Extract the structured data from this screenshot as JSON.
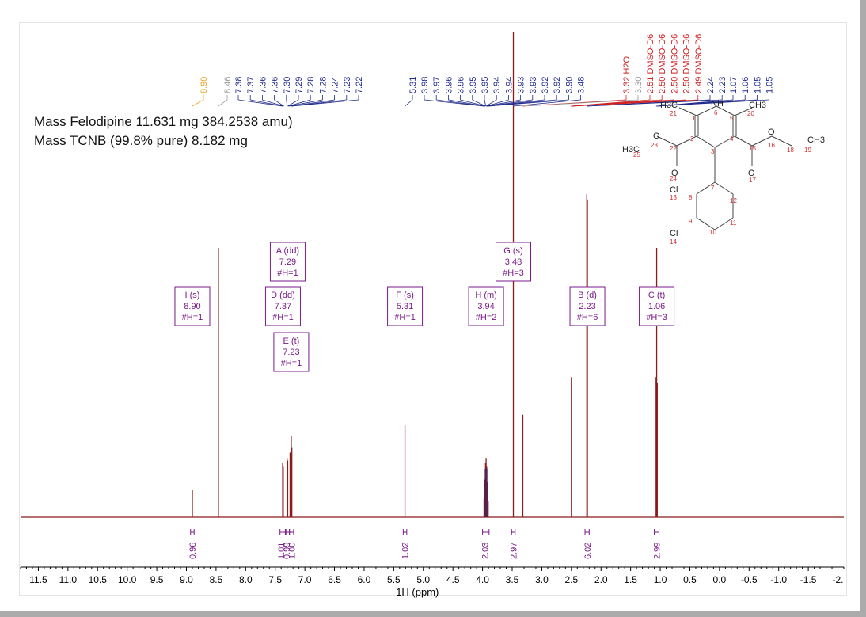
{
  "annotations": {
    "mass_line_1": "Mass Felodipine 11.631 mg 384.2538 amu)",
    "mass_line_2": "Mass TCNB (99.8% pure) 8.182 mg"
  },
  "colors": {
    "spectrum": "#8b1a1a",
    "spectrum_fill": "#1f2a8a",
    "peak_label_default": "#1f2a8a",
    "peak_label_solvent": "#d02020",
    "peak_label_orange": "#e8a020",
    "peak_label_gray": "#999999",
    "multiplet": "#7a1a8a"
  },
  "chart_data": {
    "type": "line",
    "xlabel": "1H (ppm)",
    "xlim": [
      11.8,
      -2.1
    ],
    "x_reversed": true,
    "x_ticks": [
      "11.5",
      "11.0",
      "10.5",
      "10.0",
      "9.5",
      "9.0",
      "8.5",
      "8.0",
      "7.5",
      "7.0",
      "6.5",
      "6.0",
      "5.5",
      "5.0",
      "4.5",
      "4.0",
      "3.5",
      "3.0",
      "2.5",
      "2.0",
      "1.5",
      "1.0",
      "0.5",
      "0.0",
      "-0.5",
      "-1.0",
      "-1.5",
      "-2."
    ],
    "x_tick_values": [
      11.5,
      11.0,
      10.5,
      10.0,
      9.5,
      9.0,
      8.5,
      8.0,
      7.5,
      7.0,
      6.5,
      6.0,
      5.5,
      5.0,
      4.5,
      4.0,
      3.5,
      3.0,
      2.5,
      2.0,
      1.5,
      1.0,
      0.5,
      0.0,
      -0.5,
      -1.0,
      -1.5,
      -2.0
    ],
    "peaks": [
      {
        "ppm": 8.9,
        "height": 0.1
      },
      {
        "ppm": 8.46,
        "height": 1.0
      },
      {
        "ppm": 7.375,
        "height": 0.2
      },
      {
        "ppm": 7.365,
        "height": 0.19
      },
      {
        "ppm": 7.3,
        "height": 0.22
      },
      {
        "ppm": 7.29,
        "height": 0.21
      },
      {
        "ppm": 7.25,
        "height": 0.24
      },
      {
        "ppm": 7.23,
        "height": 0.3
      },
      {
        "ppm": 7.22,
        "height": 0.26
      },
      {
        "ppm": 5.31,
        "height": 0.34
      },
      {
        "ppm": 3.975,
        "height": 0.07
      },
      {
        "ppm": 3.96,
        "height": 0.14
      },
      {
        "ppm": 3.95,
        "height": 0.2
      },
      {
        "ppm": 3.94,
        "height": 0.22
      },
      {
        "ppm": 3.93,
        "height": 0.19
      },
      {
        "ppm": 3.92,
        "height": 0.13
      },
      {
        "ppm": 3.905,
        "height": 0.06
      },
      {
        "ppm": 3.48,
        "height": 1.8
      },
      {
        "ppm": 3.32,
        "height": 0.38
      },
      {
        "ppm": 2.5,
        "height": 0.52
      },
      {
        "ppm": 2.24,
        "height": 1.2
      },
      {
        "ppm": 2.23,
        "height": 1.18
      },
      {
        "ppm": 1.07,
        "height": 0.52
      },
      {
        "ppm": 1.06,
        "height": 1.0
      },
      {
        "ppm": 1.05,
        "height": 0.5
      }
    ],
    "peak_labels": [
      {
        "text": "8.90",
        "ppm": 8.9,
        "color": "#e8a020"
      },
      {
        "text": "8.46",
        "ppm": 8.46,
        "color": "#999999"
      },
      {
        "text": "7.38",
        "ppm": 7.38,
        "color": "#1f2a8a"
      },
      {
        "text": "7.37",
        "ppm": 7.37,
        "color": "#1f2a8a"
      },
      {
        "text": "7.36",
        "ppm": 7.36,
        "color": "#1f2a8a"
      },
      {
        "text": "7.36",
        "ppm": 7.355,
        "color": "#1f2a8a"
      },
      {
        "text": "7.30",
        "ppm": 7.3,
        "color": "#1f2a8a"
      },
      {
        "text": "7.29",
        "ppm": 7.29,
        "color": "#1f2a8a"
      },
      {
        "text": "7.28",
        "ppm": 7.28,
        "color": "#1f2a8a"
      },
      {
        "text": "7.28",
        "ppm": 7.275,
        "color": "#1f2a8a"
      },
      {
        "text": "7.24",
        "ppm": 7.24,
        "color": "#1f2a8a"
      },
      {
        "text": "7.23",
        "ppm": 7.23,
        "color": "#1f2a8a"
      },
      {
        "text": "7.22",
        "ppm": 7.22,
        "color": "#1f2a8a"
      },
      {
        "text": "5.31",
        "ppm": 5.31,
        "color": "#1f2a8a"
      },
      {
        "text": "3.98",
        "ppm": 3.98,
        "color": "#1f2a8a"
      },
      {
        "text": "3.97",
        "ppm": 3.97,
        "color": "#1f2a8a"
      },
      {
        "text": "3.96",
        "ppm": 3.96,
        "color": "#1f2a8a"
      },
      {
        "text": "3.96",
        "ppm": 3.955,
        "color": "#1f2a8a"
      },
      {
        "text": "3.95",
        "ppm": 3.95,
        "color": "#1f2a8a"
      },
      {
        "text": "3.95",
        "ppm": 3.945,
        "color": "#1f2a8a"
      },
      {
        "text": "3.94",
        "ppm": 3.94,
        "color": "#1f2a8a"
      },
      {
        "text": "3.94",
        "ppm": 3.935,
        "color": "#1f2a8a"
      },
      {
        "text": "3.93",
        "ppm": 3.93,
        "color": "#1f2a8a"
      },
      {
        "text": "3.93",
        "ppm": 3.925,
        "color": "#1f2a8a"
      },
      {
        "text": "3.92",
        "ppm": 3.92,
        "color": "#1f2a8a"
      },
      {
        "text": "3.92",
        "ppm": 3.915,
        "color": "#1f2a8a"
      },
      {
        "text": "3.90",
        "ppm": 3.9,
        "color": "#1f2a8a"
      },
      {
        "text": "3.48",
        "ppm": 3.48,
        "color": "#1f2a8a"
      },
      {
        "text": "3.32 H2O",
        "ppm": 3.32,
        "color": "#d02020"
      },
      {
        "text": "3.30",
        "ppm": 3.3,
        "color": "#999999"
      },
      {
        "text": "2.51 DMSO-D6",
        "ppm": 2.51,
        "color": "#d02020"
      },
      {
        "text": "2.50 DMSO-D6",
        "ppm": 2.505,
        "color": "#d02020"
      },
      {
        "text": "2.50 DMSO-D6",
        "ppm": 2.5,
        "color": "#d02020"
      },
      {
        "text": "2.50 DMSO-D6",
        "ppm": 2.495,
        "color": "#d02020"
      },
      {
        "text": "2.49 DMSO-D6",
        "ppm": 2.49,
        "color": "#d02020"
      },
      {
        "text": "2.24",
        "ppm": 2.24,
        "color": "#1f2a8a"
      },
      {
        "text": "2.23",
        "ppm": 2.23,
        "color": "#1f2a8a"
      },
      {
        "text": "1.07",
        "ppm": 1.07,
        "color": "#1f2a8a"
      },
      {
        "text": "1.06",
        "ppm": 1.06,
        "color": "#1f2a8a"
      },
      {
        "text": "1.05",
        "ppm": 1.055,
        "color": "#1f2a8a"
      },
      {
        "text": "1.05",
        "ppm": 1.05,
        "color": "#1f2a8a"
      }
    ],
    "multiplets": [
      {
        "lines": [
          "I (s)",
          "8.90",
          "#H=1"
        ],
        "ppm": 8.9,
        "row": 1
      },
      {
        "lines": [
          "A (dd)",
          "7.29",
          "#H=1"
        ],
        "ppm": 7.29,
        "row": 0
      },
      {
        "lines": [
          "D (dd)",
          "7.37",
          "#H=1"
        ],
        "ppm": 7.37,
        "row": 1
      },
      {
        "lines": [
          "E (t)",
          "7.23",
          "#H=1"
        ],
        "ppm": 7.23,
        "row": 2
      },
      {
        "lines": [
          "F (s)",
          "5.31",
          "#H=1"
        ],
        "ppm": 5.31,
        "row": 1
      },
      {
        "lines": [
          "G (s)",
          "3.48",
          "#H=3"
        ],
        "ppm": 3.48,
        "row": 0
      },
      {
        "lines": [
          "H (m)",
          "3.94",
          "#H=2"
        ],
        "ppm": 3.94,
        "row": 1
      },
      {
        "lines": [
          "B (d)",
          "2.23",
          "#H=6"
        ],
        "ppm": 2.23,
        "row": 1
      },
      {
        "lines": [
          "C (t)",
          "1.06",
          "#H=3"
        ],
        "ppm": 1.06,
        "row": 1
      }
    ],
    "integrals": [
      {
        "value": "0.96",
        "ppm": 8.9,
        "from": 8.93,
        "to": 8.87
      },
      {
        "value": "1.01",
        "ppm": 7.4,
        "from": 7.42,
        "to": 7.33
      },
      {
        "value": "0.99",
        "ppm": 7.31,
        "from": 7.32,
        "to": 7.26
      },
      {
        "value": "1.00",
        "ppm": 7.22,
        "from": 7.26,
        "to": 7.19
      },
      {
        "value": "1.02",
        "ppm": 5.31,
        "from": 5.34,
        "to": 5.28
      },
      {
        "value": "2.03",
        "ppm": 3.96,
        "from": 4.0,
        "to": 3.89
      },
      {
        "value": "2.97",
        "ppm": 3.48,
        "from": 3.51,
        "to": 3.45
      },
      {
        "value": "6.02",
        "ppm": 2.23,
        "from": 2.27,
        "to": 2.2
      },
      {
        "value": "2.99",
        "ppm": 1.06,
        "from": 1.1,
        "to": 1.02
      }
    ]
  },
  "molecule": {
    "atom_labels": [
      "H3C",
      "NH",
      "CH3",
      "O",
      "H3C",
      "O",
      "O",
      "CH3",
      "O",
      "O",
      "Cl",
      "Cl"
    ],
    "numbers": [
      "21",
      "1",
      "6",
      "5",
      "20",
      "23",
      "2",
      "3",
      "4",
      "15",
      "16",
      "18",
      "19",
      "25",
      "22",
      "24",
      "17",
      "7",
      "8",
      "13",
      "12",
      "9",
      "11",
      "10",
      "14"
    ]
  }
}
